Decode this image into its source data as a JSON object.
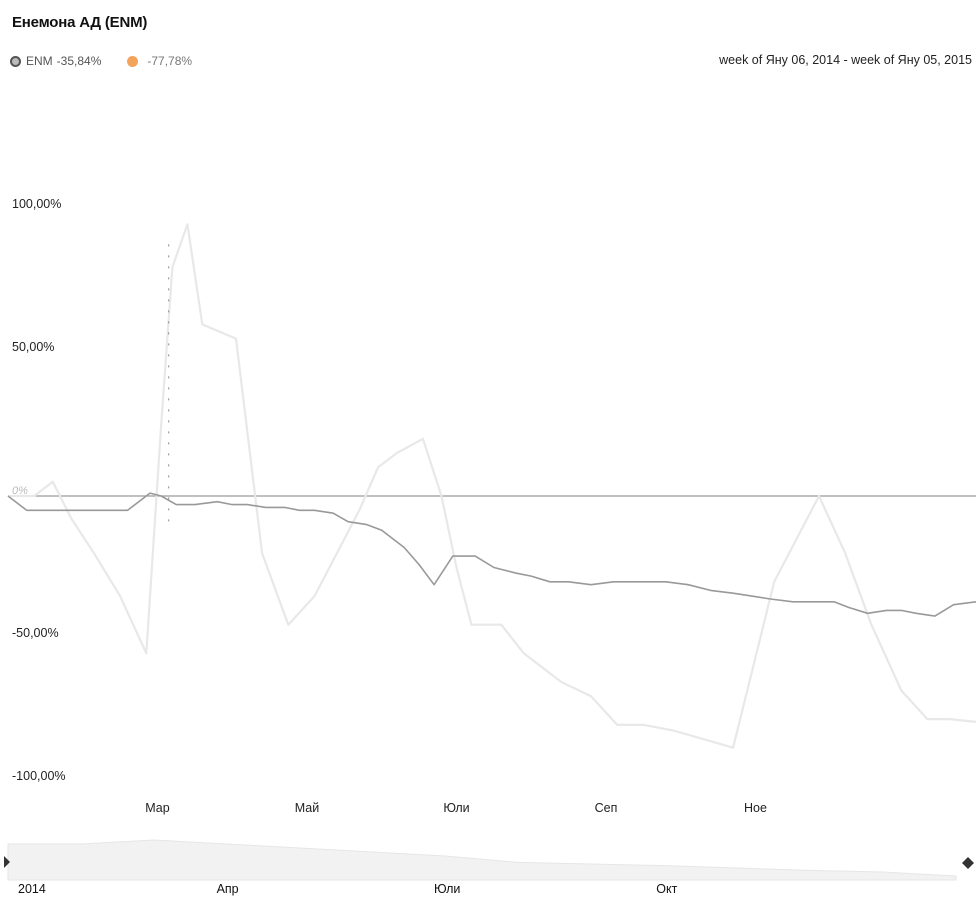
{
  "title": "Енемона АД (ENM)",
  "legend": [
    {
      "name": "ENM",
      "change": "-35,84%",
      "color": "#888888"
    },
    {
      "name": "",
      "change": "-77,78%",
      "color": "#f4a35a"
    }
  ],
  "date_range": "week of Яну 06, 2014 - week of Яну 05, 2015",
  "chart_data": {
    "type": "line",
    "title": "Енемона АД (ENM)",
    "xlabel": "",
    "ylabel": "",
    "y_tick_labels": [
      "100,00%",
      "50,00%",
      "0%",
      "-50,00%",
      "-100,00%"
    ],
    "y_ticks": [
      100,
      50,
      0,
      -50,
      -100
    ],
    "ylim": [
      -100,
      100
    ],
    "x_tick_labels": [
      "Мар",
      "Май",
      "Юли",
      "Сеп",
      "Ное"
    ],
    "x_tick_pos": [
      2.0,
      4.0,
      6.0,
      8.0,
      10.0
    ],
    "xlim": [
      0,
      12.95
    ],
    "grid": false,
    "legend_position": "top-left",
    "series": [
      {
        "name": "ENM",
        "color": "#999999",
        "x": [
          0,
          0.25,
          0.5,
          0.85,
          1.2,
          1.6,
          1.9,
          2.05,
          2.25,
          2.5,
          2.8,
          3.0,
          3.2,
          3.45,
          3.7,
          3.9,
          4.1,
          4.35,
          4.55,
          4.8,
          5.0,
          5.3,
          5.5,
          5.7,
          5.95,
          6.25,
          6.5,
          6.8,
          7.0,
          7.25,
          7.5,
          7.8,
          8.1,
          8.4,
          8.8,
          9.1,
          9.4,
          9.7,
          9.95,
          10.2,
          10.5,
          10.85,
          11.05,
          11.25,
          11.5,
          11.75,
          11.95,
          12.15,
          12.4,
          12.65,
          12.95
        ],
        "values": [
          0,
          -5,
          -5,
          -5,
          -5,
          -5,
          1,
          0,
          -3,
          -3,
          -2,
          -3,
          -3,
          -4,
          -4,
          -5,
          -5,
          -6,
          -9,
          -10,
          -12,
          -18,
          -24,
          -31,
          -21,
          -21,
          -25,
          -27,
          -28,
          -30,
          -30,
          -31,
          -30,
          -30,
          -30,
          -31,
          -33,
          -34,
          -35,
          -36,
          -37,
          -37,
          -37,
          -39,
          -41,
          -40,
          -40,
          -41,
          -42,
          -38,
          -37
        ]
      },
      {
        "name": "",
        "color": "#e8e8e8",
        "x": [
          0,
          0.35,
          0.6,
          0.85,
          1.15,
          1.5,
          1.85,
          2.05,
          2.2,
          2.4,
          2.6,
          3.05,
          3.4,
          3.75,
          4.1,
          4.4,
          4.7,
          4.95,
          5.2,
          5.55,
          5.8,
          6.0,
          6.2,
          6.6,
          6.9,
          7.4,
          7.8,
          8.15,
          8.5,
          8.9,
          9.3,
          9.7,
          10.25,
          10.85,
          11.2,
          11.55,
          11.95,
          12.3,
          12.6,
          12.95
        ],
        "values": [
          0,
          0,
          5,
          -8,
          -20,
          -35,
          -55,
          25,
          80,
          95,
          60,
          55,
          -20,
          -45,
          -35,
          -20,
          -5,
          10,
          15,
          20,
          0,
          -25,
          -45,
          -45,
          -55,
          -65,
          -70,
          -80,
          -80,
          -82,
          -85,
          -88,
          -30,
          0,
          -20,
          -45,
          -68,
          -78,
          -78,
          -79
        ]
      }
    ]
  },
  "navigator": {
    "labels": [
      "2014",
      "Апр",
      "Юли",
      "Окт"
    ],
    "label_pos": [
      0.0,
      3.0,
      6.0,
      9.0
    ],
    "values": [
      -5,
      -5,
      0,
      -5,
      -10,
      -15,
      -20,
      -28,
      -30,
      -32,
      -35,
      -38,
      -40,
      -45
    ]
  }
}
